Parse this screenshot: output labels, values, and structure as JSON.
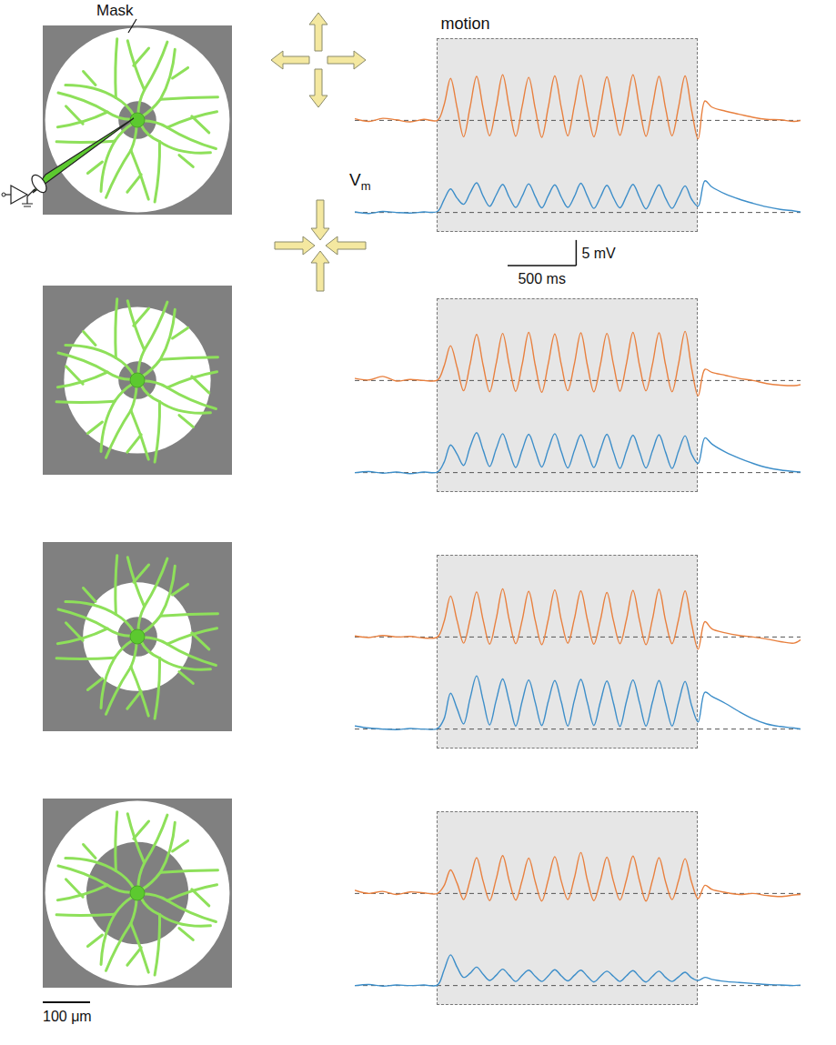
{
  "chart_data": [
    {
      "type": "line",
      "color": "#e8803f",
      "tick_labels": false,
      "baseline": 0,
      "xlim": [
        -600,
        2650
      ],
      "ylim": [
        -5,
        11
      ],
      "x": [
        -600,
        -500,
        -400,
        -300,
        -200,
        -100,
        0,
        47.5,
        95,
        142.5,
        190,
        237.5,
        285,
        332.5,
        380,
        427.5,
        475,
        522.5,
        570,
        617.5,
        665,
        712.5,
        760,
        807.5,
        855,
        902.5,
        950,
        997.5,
        1045,
        1092.5,
        1140,
        1187.5,
        1235,
        1282.5,
        1330,
        1377.5,
        1425,
        1472.5,
        1520,
        1567.5,
        1615,
        1662.5,
        1710,
        1757.5,
        1805,
        1852.5,
        1900,
        1950,
        2000,
        2100,
        2200,
        2300,
        2400,
        2500,
        2600,
        2650
      ],
      "values": [
        0.3,
        -0.2,
        0.4,
        0.1,
        -0.3,
        0.2,
        0,
        3,
        8.2,
        2.5,
        -3.2,
        2.6,
        8.6,
        2.4,
        -3.0,
        2.7,
        8.9,
        2.6,
        -3.1,
        2.8,
        8.4,
        2.3,
        -3.3,
        2.6,
        8.7,
        2.5,
        -3.0,
        2.9,
        8.8,
        2.4,
        -3.2,
        2.5,
        8.5,
        2.6,
        -2.9,
        2.7,
        8.9,
        2.5,
        -3.1,
        2.8,
        8.6,
        2.4,
        -3.0,
        2.6,
        8.7,
        2.0,
        -3.6,
        3.8,
        2.6,
        1.8,
        1.2,
        0.6,
        0.2,
        0.1,
        -0.2,
        0.0
      ]
    },
    {
      "type": "line",
      "color": "#3d8ec9",
      "tick_labels": false,
      "baseline": 0,
      "xlim": [
        -600,
        2650
      ],
      "ylim": [
        -3,
        13
      ],
      "x": [
        -600,
        -500,
        -400,
        -300,
        -200,
        -100,
        0,
        47.5,
        95,
        142.5,
        190,
        237.5,
        285,
        332.5,
        380,
        427.5,
        475,
        522.5,
        570,
        617.5,
        665,
        712.5,
        760,
        807.5,
        855,
        902.5,
        950,
        997.5,
        1045,
        1092.5,
        1140,
        1187.5,
        1235,
        1282.5,
        1330,
        1377.5,
        1425,
        1472.5,
        1520,
        1567.5,
        1615,
        1662.5,
        1710,
        1757.5,
        1805,
        1852.5,
        1900,
        1950,
        2000,
        2100,
        2200,
        2300,
        2400,
        2500,
        2600,
        2650
      ],
      "values": [
        0.1,
        -0.2,
        0.2,
        0.0,
        -0.1,
        0.1,
        0.2,
        2.5,
        4.6,
        2.8,
        1.6,
        3.8,
        5.8,
        3.2,
        1.2,
        3.4,
        5.5,
        3.0,
        1.0,
        3.2,
        5.6,
        3.1,
        0.9,
        3.3,
        5.4,
        3.0,
        1.0,
        3.1,
        5.7,
        3.2,
        0.8,
        3.0,
        5.3,
        2.9,
        0.9,
        3.2,
        5.5,
        3.0,
        0.7,
        3.1,
        5.4,
        2.8,
        0.8,
        3.0,
        5.2,
        2.6,
        1.2,
        6.2,
        5.0,
        3.6,
        2.6,
        1.8,
        1.1,
        0.6,
        0.3,
        0.1
      ]
    },
    {
      "type": "line",
      "color": "#e8803f",
      "tick_labels": false,
      "baseline": 0,
      "xlim": [
        -600,
        2650
      ],
      "ylim": [
        -5,
        11
      ],
      "x": [
        -600,
        -500,
        -400,
        -300,
        -200,
        -100,
        0,
        47.5,
        95,
        142.5,
        190,
        237.5,
        285,
        332.5,
        380,
        427.5,
        475,
        522.5,
        570,
        617.5,
        665,
        712.5,
        760,
        807.5,
        855,
        902.5,
        950,
        997.5,
        1045,
        1092.5,
        1140,
        1187.5,
        1235,
        1282.5,
        1330,
        1377.5,
        1425,
        1472.5,
        1520,
        1567.5,
        1615,
        1662.5,
        1710,
        1757.5,
        1805,
        1852.5,
        1900,
        1950,
        2000,
        2100,
        2200,
        2300,
        2400,
        2500,
        2600,
        2650
      ],
      "values": [
        0.4,
        0.1,
        0.8,
        -0.1,
        0.2,
        0.0,
        0.1,
        2.8,
        6.8,
        2.6,
        -2.0,
        3.2,
        9.0,
        3.0,
        -2.2,
        3.3,
        9.2,
        3.1,
        -2.1,
        3.2,
        9.4,
        3.0,
        -2.3,
        3.3,
        9.1,
        3.1,
        -2.0,
        3.2,
        9.3,
        3.0,
        -2.2,
        3.1,
        9.2,
        3.2,
        -2.1,
        3.3,
        9.4,
        3.0,
        -2.0,
        3.2,
        9.3,
        3.1,
        -2.2,
        3.3,
        9.6,
        2.4,
        -3.0,
        2.2,
        1.6,
        1.0,
        0.4,
        0.0,
        -0.6,
        -0.9,
        -1.0,
        -0.8
      ]
    },
    {
      "type": "line",
      "color": "#3d8ec9",
      "tick_labels": false,
      "baseline": 0,
      "xlim": [
        -600,
        2650
      ],
      "ylim": [
        -3,
        13
      ],
      "x": [
        -600,
        -500,
        -400,
        -300,
        -200,
        -100,
        0,
        47.5,
        95,
        142.5,
        190,
        237.5,
        285,
        332.5,
        380,
        427.5,
        475,
        522.5,
        570,
        617.5,
        665,
        712.5,
        760,
        807.5,
        855,
        902.5,
        950,
        997.5,
        1045,
        1092.5,
        1140,
        1187.5,
        1235,
        1282.5,
        1330,
        1377.5,
        1425,
        1472.5,
        1520,
        1567.5,
        1615,
        1662.5,
        1710,
        1757.5,
        1805,
        1852.5,
        1900,
        1950,
        2000,
        2100,
        2200,
        2300,
        2400,
        2500,
        2600,
        2650
      ],
      "values": [
        0.0,
        0.2,
        -0.1,
        0.1,
        -0.2,
        0.1,
        0.1,
        2.0,
        5.4,
        3.6,
        1.4,
        5.0,
        7.8,
        4.4,
        1.2,
        4.6,
        7.6,
        4.2,
        1.0,
        4.4,
        7.5,
        4.3,
        1.1,
        4.5,
        7.6,
        4.1,
        0.9,
        4.3,
        7.4,
        4.2,
        1.0,
        4.4,
        7.5,
        4.0,
        0.8,
        4.2,
        7.3,
        4.1,
        0.9,
        4.3,
        7.4,
        4.0,
        0.8,
        4.2,
        7.2,
        3.6,
        1.8,
        6.8,
        5.6,
        4.0,
        2.8,
        1.8,
        1.0,
        0.5,
        0.2,
        0.1
      ]
    },
    {
      "type": "line",
      "color": "#e8803f",
      "tick_labels": false,
      "baseline": 0,
      "xlim": [
        -600,
        2650
      ],
      "ylim": [
        -5,
        11
      ],
      "x": [
        -600,
        -500,
        -400,
        -300,
        -200,
        -100,
        0,
        47.5,
        95,
        142.5,
        190,
        237.5,
        285,
        332.5,
        380,
        427.5,
        475,
        522.5,
        570,
        617.5,
        665,
        712.5,
        760,
        807.5,
        855,
        902.5,
        950,
        997.5,
        1045,
        1092.5,
        1140,
        1187.5,
        1235,
        1282.5,
        1330,
        1377.5,
        1425,
        1472.5,
        1520,
        1567.5,
        1615,
        1662.5,
        1710,
        1757.5,
        1805,
        1852.5,
        1900,
        1950,
        2000,
        2100,
        2200,
        2300,
        2400,
        2500,
        2600,
        2650
      ],
      "values": [
        0.2,
        -0.1,
        0.3,
        0.0,
        0.1,
        -0.2,
        0.0,
        3.0,
        8.0,
        3.2,
        -1.2,
        3.4,
        8.8,
        3.3,
        -1.4,
        3.5,
        9.4,
        3.4,
        -1.3,
        3.3,
        8.9,
        3.2,
        -1.5,
        3.4,
        9.2,
        3.3,
        -1.2,
        3.5,
        9.0,
        3.4,
        -1.4,
        3.3,
        8.7,
        3.2,
        -1.3,
        3.4,
        9.1,
        3.3,
        -1.5,
        3.5,
        9.3,
        3.2,
        -1.3,
        3.4,
        9.0,
        2.6,
        -2.4,
        3.0,
        1.6,
        0.8,
        0.3,
        0.0,
        -0.4,
        -0.9,
        -1.2,
        -0.5
      ]
    },
    {
      "type": "line",
      "color": "#3d8ec9",
      "tick_labels": false,
      "baseline": 0,
      "xlim": [
        -600,
        2650
      ],
      "ylim": [
        -3,
        13
      ],
      "x": [
        -600,
        -500,
        -400,
        -300,
        -200,
        -100,
        0,
        47.5,
        95,
        142.5,
        190,
        237.5,
        285,
        332.5,
        380,
        427.5,
        475,
        522.5,
        570,
        617.5,
        665,
        712.5,
        760,
        807.5,
        855,
        902.5,
        950,
        997.5,
        1045,
        1092.5,
        1140,
        1187.5,
        1235,
        1282.5,
        1330,
        1377.5,
        1425,
        1472.5,
        1520,
        1567.5,
        1615,
        1662.5,
        1710,
        1757.5,
        1805,
        1852.5,
        1900,
        1950,
        2000,
        2100,
        2200,
        2300,
        2400,
        2500,
        2600,
        2650
      ],
      "values": [
        0.6,
        0.2,
        0.0,
        -0.1,
        0.1,
        0.0,
        0.1,
        2.0,
        7.0,
        4.0,
        1.0,
        6.0,
        10.4,
        5.6,
        0.8,
        5.6,
        9.8,
        5.4,
        0.6,
        5.5,
        9.6,
        5.2,
        0.7,
        5.4,
        9.5,
        5.3,
        0.6,
        5.6,
        9.7,
        5.2,
        0.7,
        5.3,
        9.4,
        5.1,
        0.5,
        5.4,
        9.6,
        5.2,
        0.6,
        5.3,
        9.5,
        5.0,
        0.6,
        5.2,
        9.3,
        4.6,
        1.4,
        7.2,
        6.4,
        5.0,
        3.4,
        2.0,
        1.0,
        0.5,
        0.2,
        0.0
      ]
    },
    {
      "type": "line",
      "color": "#e8803f",
      "tick_labels": false,
      "baseline": 0,
      "xlim": [
        -600,
        2650
      ],
      "ylim": [
        -5,
        11
      ],
      "x": [
        -600,
        -500,
        -400,
        -300,
        -200,
        -100,
        0,
        47.5,
        95,
        142.5,
        190,
        237.5,
        285,
        332.5,
        380,
        427.5,
        475,
        522.5,
        570,
        617.5,
        665,
        712.5,
        760,
        807.5,
        855,
        902.5,
        950,
        997.5,
        1045,
        1092.5,
        1140,
        1187.5,
        1235,
        1282.5,
        1330,
        1377.5,
        1425,
        1472.5,
        1520,
        1567.5,
        1615,
        1662.5,
        1710,
        1757.5,
        1805,
        1852.5,
        1900,
        1950,
        2000,
        2100,
        2200,
        2300,
        2400,
        2500,
        2600,
        2650
      ],
      "values": [
        0.6,
        0.0,
        0.4,
        -0.2,
        0.3,
        0.1,
        0.0,
        1.5,
        4.6,
        2.0,
        -1.2,
        2.6,
        7.0,
        2.4,
        -1.4,
        2.8,
        7.4,
        2.5,
        -1.3,
        2.6,
        6.9,
        2.3,
        -1.5,
        2.7,
        7.2,
        2.4,
        -1.2,
        3.0,
        8.0,
        2.6,
        -1.4,
        2.5,
        7.1,
        2.4,
        -1.3,
        2.7,
        7.3,
        2.5,
        -1.5,
        2.6,
        7.0,
        2.3,
        -1.2,
        2.5,
        6.8,
        2.2,
        -1.0,
        1.6,
        0.8,
        0.2,
        -0.2,
        0.0,
        -0.4,
        -0.6,
        -0.3,
        -0.2
      ]
    },
    {
      "type": "line",
      "color": "#3d8ec9",
      "tick_labels": false,
      "baseline": 0,
      "xlim": [
        -600,
        2650
      ],
      "ylim": [
        -3,
        13
      ],
      "x": [
        -600,
        -500,
        -400,
        -300,
        -200,
        -100,
        0,
        47.5,
        95,
        142.5,
        190,
        237.5,
        285,
        332.5,
        380,
        427.5,
        475,
        522.5,
        570,
        617.5,
        665,
        712.5,
        760,
        807.5,
        855,
        902.5,
        950,
        997.5,
        1045,
        1092.5,
        1140,
        1187.5,
        1235,
        1282.5,
        1330,
        1377.5,
        1425,
        1472.5,
        1520,
        1567.5,
        1615,
        1662.5,
        1710,
        1757.5,
        1805,
        1852.5,
        1900,
        1950,
        2000,
        2100,
        2200,
        2300,
        2400,
        2500,
        2600,
        2650
      ],
      "values": [
        0.0,
        0.2,
        -0.1,
        0.1,
        0.0,
        0.1,
        0.1,
        3.0,
        6.0,
        3.6,
        1.6,
        2.4,
        3.6,
        2.2,
        1.0,
        2.0,
        3.2,
        2.0,
        0.8,
        2.0,
        3.0,
        1.8,
        0.8,
        1.9,
        3.1,
        1.9,
        0.9,
        2.0,
        3.0,
        1.8,
        0.7,
        1.8,
        2.8,
        1.8,
        0.8,
        1.9,
        2.9,
        1.7,
        0.7,
        1.8,
        2.8,
        1.6,
        0.8,
        1.7,
        2.6,
        1.5,
        1.0,
        1.6,
        1.2,
        0.8,
        0.6,
        0.4,
        0.2,
        0.1,
        0.0,
        0.1
      ]
    }
  ],
  "figure": {
    "mask_label": "Mask",
    "motion": {
      "label": "motion",
      "start": 0,
      "end": 1900
    },
    "vm_label": "Vm",
    "time_bar": {
      "value": 500,
      "label": "500 ms"
    },
    "voltage_bar": {
      "value": 5,
      "label": "5 mV"
    },
    "space_bar": {
      "value": 100,
      "label": "100 μm"
    },
    "masks": [
      {
        "inner_radius": 40,
        "outer_radius": 195
      },
      {
        "inner_radius": 40,
        "outer_radius": 155
      },
      {
        "inner_radius": 42,
        "outer_radius": 115
      },
      {
        "inner_radius": 108,
        "outer_radius": 195
      }
    ]
  }
}
